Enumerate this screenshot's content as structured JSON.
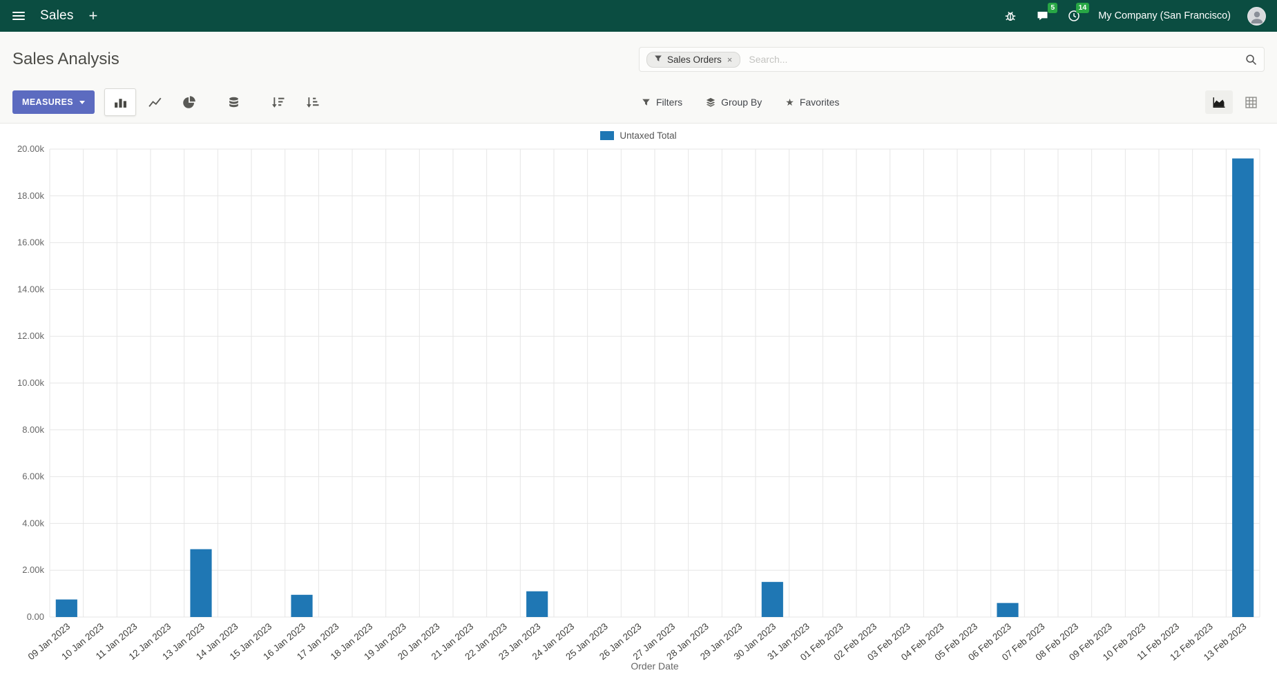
{
  "topbar": {
    "app_name": "Sales",
    "plus_label": "+",
    "messages_badge": "5",
    "activities_badge": "14",
    "company": "My Company (San Francisco)"
  },
  "control_panel": {
    "title": "Sales Analysis",
    "measures_button": "MEASURES",
    "search": {
      "facet_label": "Sales Orders",
      "facet_remove": "×",
      "placeholder": "Search..."
    },
    "filters_label": "Filters",
    "group_by_label": "Group By",
    "favorites_label": "Favorites"
  },
  "icons": {
    "star": "★"
  },
  "colors": {
    "topbar_bg": "#0b4d41",
    "primary_button": "#5c6bc0",
    "badge_green": "#28a745",
    "bar_blue": "#1f77b4",
    "grid": "#e6e6e6"
  },
  "chart_data": {
    "type": "bar",
    "title": "",
    "xlabel": "Order Date",
    "ylabel": "",
    "ylim": [
      0,
      20000
    ],
    "y_tick_labels": [
      "0.00",
      "2.00k",
      "4.00k",
      "6.00k",
      "8.00k",
      "10.00k",
      "12.00k",
      "14.00k",
      "16.00k",
      "18.00k",
      "20.00k"
    ],
    "grid": true,
    "legend_position": "top-center",
    "categories": [
      "09 Jan 2023",
      "10 Jan 2023",
      "11 Jan 2023",
      "12 Jan 2023",
      "13 Jan 2023",
      "14 Jan 2023",
      "15 Jan 2023",
      "16 Jan 2023",
      "17 Jan 2023",
      "18 Jan 2023",
      "19 Jan 2023",
      "20 Jan 2023",
      "21 Jan 2023",
      "22 Jan 2023",
      "23 Jan 2023",
      "24 Jan 2023",
      "25 Jan 2023",
      "26 Jan 2023",
      "27 Jan 2023",
      "28 Jan 2023",
      "29 Jan 2023",
      "30 Jan 2023",
      "31 Jan 2023",
      "01 Feb 2023",
      "02 Feb 2023",
      "03 Feb 2023",
      "04 Feb 2023",
      "05 Feb 2023",
      "06 Feb 2023",
      "07 Feb 2023",
      "08 Feb 2023",
      "09 Feb 2023",
      "10 Feb 2023",
      "11 Feb 2023",
      "12 Feb 2023",
      "13 Feb 2023"
    ],
    "series": [
      {
        "name": "Untaxed Total",
        "color": "#1f77b4",
        "values": [
          750,
          0,
          0,
          0,
          2900,
          0,
          0,
          950,
          0,
          0,
          0,
          0,
          0,
          0,
          1100,
          0,
          0,
          0,
          0,
          0,
          0,
          1500,
          0,
          0,
          0,
          0,
          0,
          0,
          600,
          0,
          0,
          0,
          0,
          0,
          0,
          19600
        ]
      }
    ]
  }
}
